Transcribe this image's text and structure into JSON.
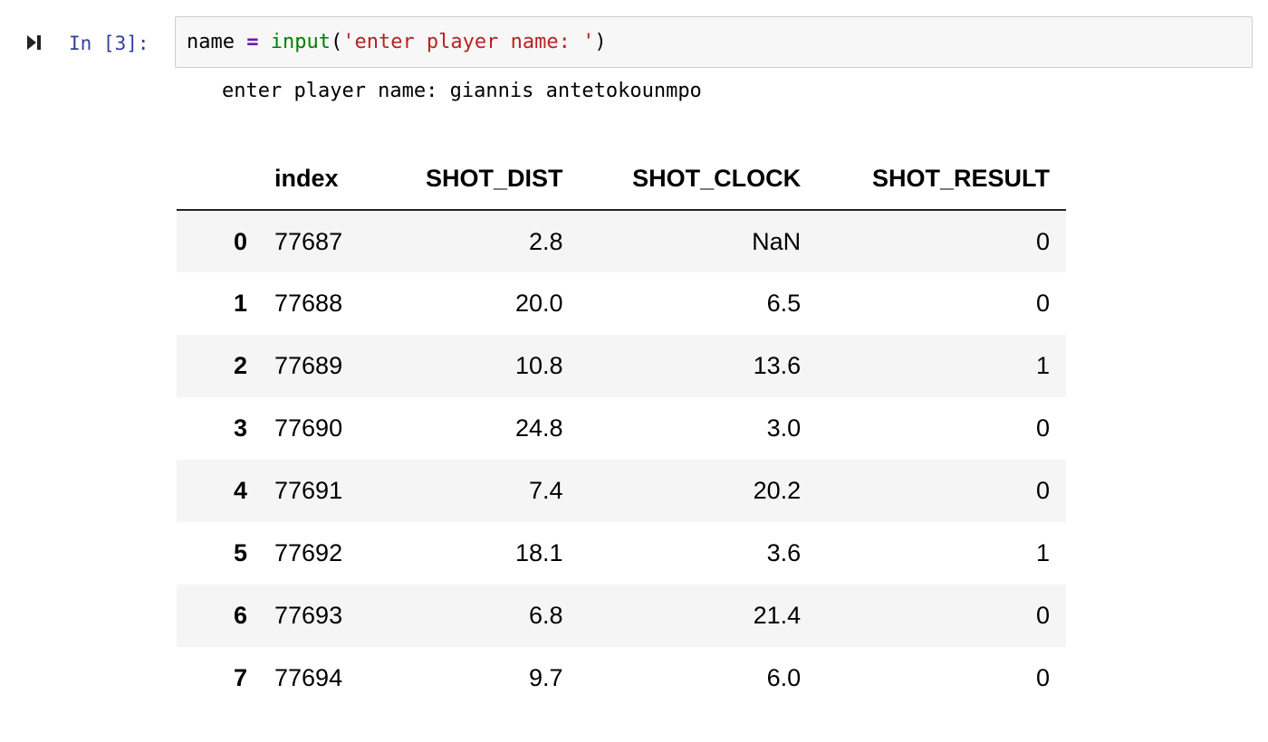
{
  "cell": {
    "prompt": "In [3]:",
    "code": {
      "var": "name",
      "op": "=",
      "func": "input",
      "open": "(",
      "string": "'enter player name: '",
      "close": ")"
    },
    "stdout": "enter player name: giannis antetokounmpo"
  },
  "icons": {
    "run": "run-cell-icon"
  },
  "colors": {
    "prompt": "#303f9f",
    "string": "#ba2121",
    "cell_bg": "#f7f7f7",
    "row_stripe": "#f5f5f5"
  },
  "table": {
    "columns": [
      "index",
      "SHOT_DIST",
      "SHOT_CLOCK",
      "SHOT_RESULT"
    ],
    "rows": [
      {
        "label": "0",
        "cells": [
          "77687",
          "2.8",
          "NaN",
          "0"
        ]
      },
      {
        "label": "1",
        "cells": [
          "77688",
          "20.0",
          "6.5",
          "0"
        ]
      },
      {
        "label": "2",
        "cells": [
          "77689",
          "10.8",
          "13.6",
          "1"
        ]
      },
      {
        "label": "3",
        "cells": [
          "77690",
          "24.8",
          "3.0",
          "0"
        ]
      },
      {
        "label": "4",
        "cells": [
          "77691",
          "7.4",
          "20.2",
          "0"
        ]
      },
      {
        "label": "5",
        "cells": [
          "77692",
          "18.1",
          "3.6",
          "1"
        ]
      },
      {
        "label": "6",
        "cells": [
          "77693",
          "6.8",
          "21.4",
          "0"
        ]
      },
      {
        "label": "7",
        "cells": [
          "77694",
          "9.7",
          "6.0",
          "0"
        ]
      }
    ]
  }
}
